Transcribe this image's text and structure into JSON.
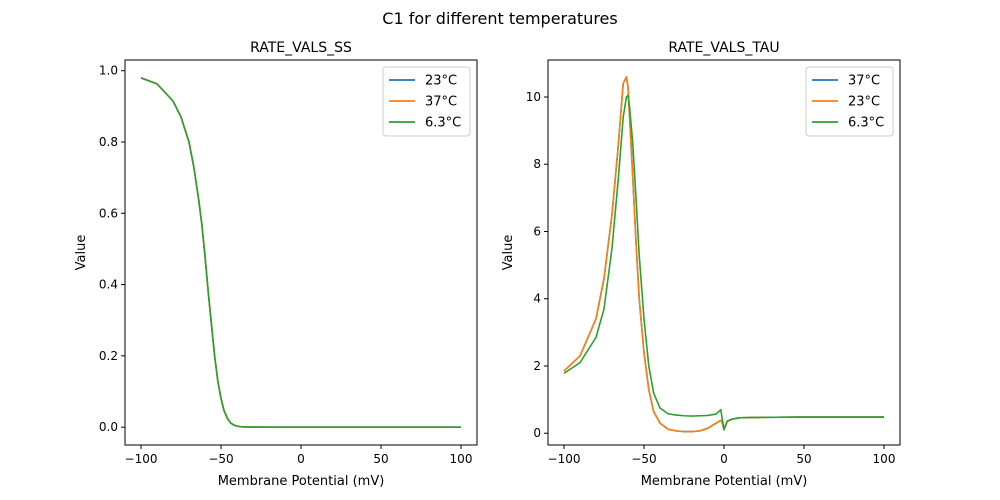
{
  "figure_title": "C1 for different temperatures",
  "chart_data": [
    {
      "type": "line",
      "title": "RATE_VALS_SS",
      "xlabel": "Membrane Potential (mV)",
      "ylabel": "Value",
      "xlim": [
        -110,
        110
      ],
      "ylim": [
        -0.05,
        1.03
      ],
      "xticks": [
        -100,
        -50,
        0,
        50,
        100
      ],
      "xtick_labels": [
        "−100",
        "−50",
        "0",
        "50",
        "100"
      ],
      "yticks": [
        0.0,
        0.2,
        0.4,
        0.6,
        0.8,
        1.0
      ],
      "ytick_labels": [
        "0.0",
        "0.2",
        "0.4",
        "0.6",
        "0.8",
        "1.0"
      ],
      "grid": false,
      "legend_position": "top-right",
      "series": [
        {
          "name": "23°C",
          "color": "#1f77b4",
          "x": [
            -100,
            -90,
            -80,
            -75,
            -70,
            -67,
            -64,
            -62,
            -60,
            -58,
            -56,
            -54,
            -52,
            -50,
            -48,
            -46,
            -44,
            -42,
            -40,
            -38,
            -35,
            -30,
            -20,
            0,
            50,
            100
          ],
          "y": [
            0.98,
            0.963,
            0.915,
            0.87,
            0.8,
            0.73,
            0.64,
            0.57,
            0.48,
            0.38,
            0.29,
            0.2,
            0.13,
            0.08,
            0.045,
            0.025,
            0.012,
            0.006,
            0.003,
            0.0015,
            0.0008,
            0.0003,
            0.0001,
            0.0,
            0.0,
            0.0
          ]
        },
        {
          "name": "37°C",
          "color": "#ff7f0e",
          "x": [
            -100,
            -90,
            -80,
            -75,
            -70,
            -67,
            -64,
            -62,
            -60,
            -58,
            -56,
            -54,
            -52,
            -50,
            -48,
            -46,
            -44,
            -42,
            -40,
            -38,
            -35,
            -30,
            -20,
            0,
            50,
            100
          ],
          "y": [
            0.98,
            0.963,
            0.915,
            0.87,
            0.8,
            0.73,
            0.64,
            0.57,
            0.48,
            0.38,
            0.29,
            0.2,
            0.13,
            0.08,
            0.045,
            0.025,
            0.012,
            0.006,
            0.003,
            0.0015,
            0.0008,
            0.0003,
            0.0001,
            0.0,
            0.0,
            0.0
          ]
        },
        {
          "name": "6.3°C",
          "color": "#2ca02c",
          "x": [
            -100,
            -90,
            -80,
            -75,
            -70,
            -67,
            -64,
            -62,
            -60,
            -58,
            -56,
            -54,
            -52,
            -50,
            -48,
            -46,
            -44,
            -42,
            -40,
            -38,
            -35,
            -30,
            -20,
            0,
            50,
            100
          ],
          "y": [
            0.98,
            0.963,
            0.915,
            0.87,
            0.8,
            0.73,
            0.64,
            0.57,
            0.48,
            0.38,
            0.29,
            0.2,
            0.13,
            0.08,
            0.045,
            0.025,
            0.012,
            0.006,
            0.003,
            0.0015,
            0.0008,
            0.0003,
            0.0001,
            0.0,
            0.0,
            0.0
          ]
        }
      ]
    },
    {
      "type": "line",
      "title": "RATE_VALS_TAU",
      "xlabel": "Membrane Potential (mV)",
      "ylabel": "Value",
      "xlim": [
        -110,
        110
      ],
      "ylim": [
        -0.35,
        11.1
      ],
      "xticks": [
        -100,
        -50,
        0,
        50,
        100
      ],
      "xtick_labels": [
        "−100",
        "−50",
        "0",
        "50",
        "100"
      ],
      "yticks": [
        0,
        2,
        4,
        6,
        8,
        10
      ],
      "ytick_labels": [
        "0",
        "2",
        "4",
        "6",
        "8",
        "10"
      ],
      "grid": false,
      "legend_position": "top-right",
      "series": [
        {
          "name": "37°C",
          "color": "#1f77b4",
          "x": [
            -100,
            -90,
            -80,
            -75,
            -70,
            -66,
            -63,
            -61,
            -60,
            -59,
            -57,
            -55,
            -53,
            -50,
            -47,
            -44,
            -40,
            -35,
            -30,
            -25,
            -20,
            -15,
            -10,
            -5,
            -2,
            -1,
            0,
            2,
            5,
            10,
            20,
            50,
            100
          ],
          "y": [
            1.85,
            2.3,
            3.4,
            4.6,
            6.5,
            8.6,
            10.4,
            10.6,
            10.3,
            9.4,
            7.6,
            5.7,
            4.0,
            2.4,
            1.3,
            0.65,
            0.3,
            0.12,
            0.07,
            0.05,
            0.05,
            0.07,
            0.15,
            0.3,
            0.38,
            0.3,
            0.1,
            0.35,
            0.42,
            0.46,
            0.47,
            0.48,
            0.48
          ]
        },
        {
          "name": "23°C",
          "color": "#ff7f0e",
          "x": [
            -100,
            -90,
            -80,
            -75,
            -70,
            -66,
            -63,
            -61,
            -60,
            -59,
            -57,
            -55,
            -53,
            -50,
            -47,
            -44,
            -40,
            -35,
            -30,
            -25,
            -20,
            -15,
            -10,
            -5,
            -2,
            -1,
            0,
            2,
            5,
            10,
            20,
            50,
            100
          ],
          "y": [
            1.85,
            2.3,
            3.4,
            4.6,
            6.5,
            8.6,
            10.4,
            10.6,
            10.3,
            9.4,
            7.6,
            5.7,
            4.0,
            2.4,
            1.3,
            0.65,
            0.3,
            0.12,
            0.07,
            0.05,
            0.05,
            0.07,
            0.15,
            0.3,
            0.38,
            0.3,
            0.1,
            0.35,
            0.42,
            0.46,
            0.47,
            0.48,
            0.48
          ]
        },
        {
          "name": "6.3°C",
          "color": "#2ca02c",
          "x": [
            -100,
            -90,
            -80,
            -75,
            -70,
            -66,
            -63,
            -61,
            -60,
            -59,
            -57,
            -55,
            -53,
            -50,
            -47,
            -44,
            -40,
            -35,
            -30,
            -25,
            -20,
            -15,
            -10,
            -5,
            -2,
            -1,
            0,
            2,
            5,
            10,
            20,
            50,
            100
          ],
          "y": [
            1.78,
            2.1,
            2.85,
            3.7,
            5.5,
            7.6,
            9.4,
            10.0,
            10.05,
            9.7,
            8.6,
            7.0,
            5.3,
            3.4,
            2.0,
            1.2,
            0.75,
            0.58,
            0.54,
            0.52,
            0.51,
            0.52,
            0.53,
            0.57,
            0.7,
            0.4,
            0.12,
            0.36,
            0.42,
            0.46,
            0.47,
            0.48,
            0.48
          ]
        }
      ]
    }
  ]
}
